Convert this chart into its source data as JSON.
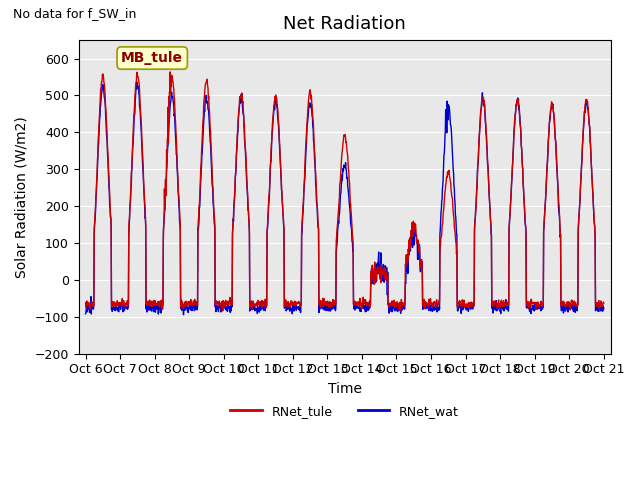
{
  "title": "Net Radiation",
  "xlabel": "Time",
  "ylabel": "Solar Radiation (W/m2)",
  "ylim": [
    -200,
    650
  ],
  "yticks": [
    -200,
    -100,
    0,
    100,
    200,
    300,
    400,
    500,
    600
  ],
  "xlabels": [
    "Oct 6",
    "Oct 7",
    "Oct 8",
    "Oct 9",
    "Oct 10",
    "Oct 11",
    "Oct 12",
    "Oct 13",
    "Oct 14",
    "Oct 15",
    "Oct 16",
    "Oct 17",
    "Oct 18",
    "Oct 19",
    "Oct 20",
    "Oct 21"
  ],
  "xtick_positions": [
    0,
    1,
    2,
    3,
    4,
    5,
    6,
    7,
    8,
    9,
    10,
    11,
    12,
    13,
    14,
    15
  ],
  "color_tule": "#cc0000",
  "color_wat": "#0000cc",
  "legend_entries": [
    "RNet_tule",
    "RNet_wat"
  ],
  "annotation_text": "MB_tule",
  "no_data_text": "No data for f_SW_in",
  "bg_color": "#e8e8e8",
  "linewidth_tule": 1.0,
  "linewidth_wat": 1.0,
  "n_days": 15,
  "points_per_day": 96,
  "title_fontsize": 13,
  "label_fontsize": 10,
  "tick_fontsize": 9
}
